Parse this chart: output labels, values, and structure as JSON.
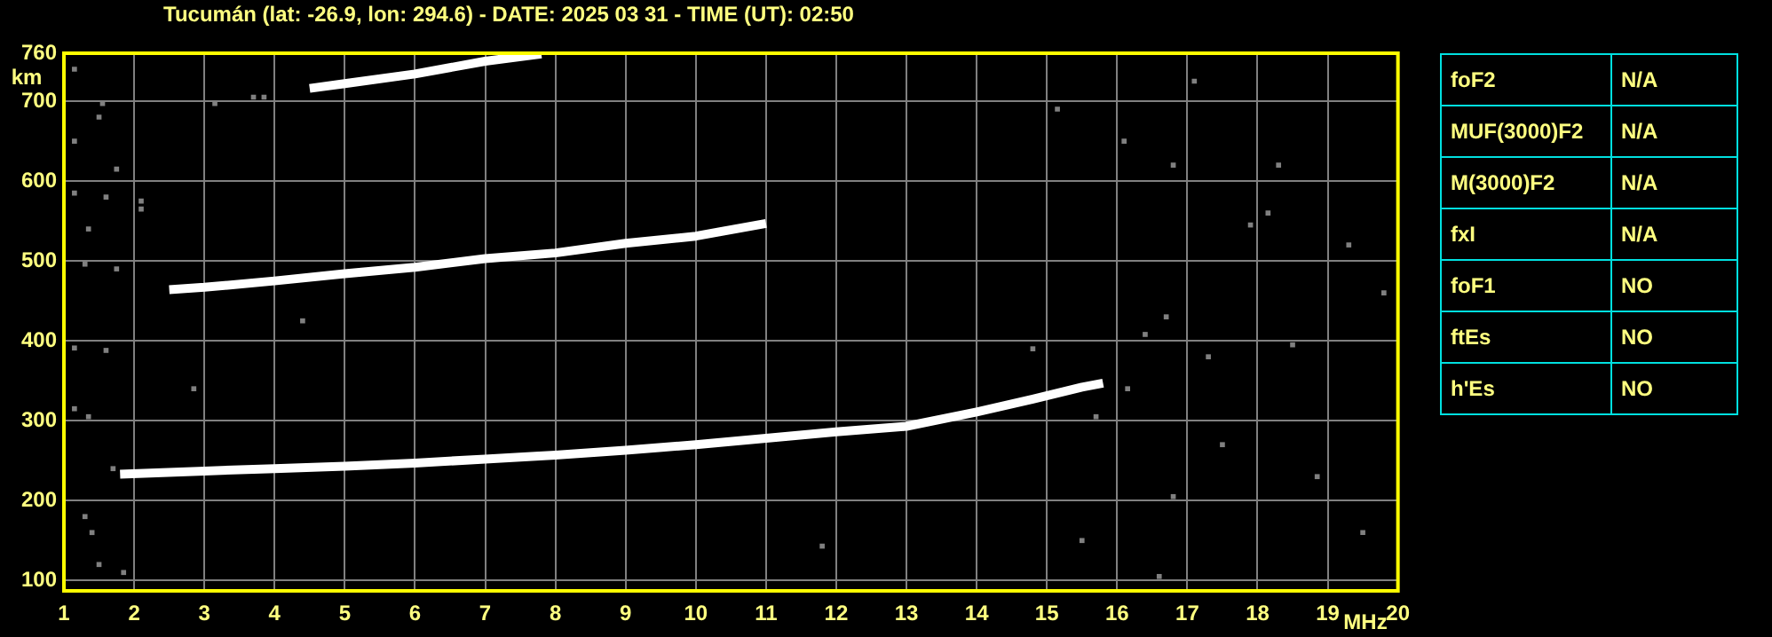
{
  "chart_data": [
    {
      "type": "line",
      "title": "Tucumán (lat: -26.9, lon: 294.6) - DATE: 2025 03 31 - TIME (UT): 02:50",
      "xlabel": "MHz",
      "ylabel": "km",
      "xlim": [
        1,
        20
      ],
      "ylim": [
        87,
        760
      ],
      "xticks": [
        1,
        2,
        3,
        4,
        5,
        6,
        7,
        8,
        9,
        10,
        11,
        12,
        13,
        14,
        15,
        16,
        17,
        18,
        19,
        20
      ],
      "yticks": [
        100,
        200,
        300,
        400,
        500,
        600,
        700,
        760
      ],
      "grid": true,
      "series": [
        {
          "color": "#ffffff",
          "x": [
            1.8,
            3,
            4,
            5,
            6,
            7,
            8,
            9,
            10,
            11,
            12,
            13,
            14,
            14.8,
            15.5,
            15.8
          ],
          "values": [
            233,
            237,
            240,
            243,
            247,
            252,
            257,
            263,
            270,
            278,
            286,
            293,
            311,
            327,
            342,
            347
          ]
        },
        {
          "color": "#ffffff",
          "x": [
            2.5,
            3,
            4,
            5,
            6,
            7,
            8,
            9,
            10,
            11
          ],
          "values": [
            464,
            467,
            475,
            484,
            492,
            503,
            510,
            522,
            531,
            547
          ]
        },
        {
          "color": "#ffffff",
          "x": [
            4.5,
            5,
            6,
            7,
            7.8
          ],
          "values": [
            716,
            722,
            734,
            750,
            759
          ]
        },
        {
          "type": "scatter",
          "marker": "square",
          "color": "#808080",
          "x": [
            1.15,
            1.55,
            1.5,
            1.15,
            1.75,
            1.15,
            1.6,
            1.35,
            2.1,
            2.1,
            3.15,
            3.7,
            3.85,
            1.3,
            1.75,
            1.15,
            1.6,
            2.85,
            1.15,
            1.35,
            1.7,
            1.3,
            1.4,
            1.5,
            1.85,
            11.8,
            4.4,
            17.1,
            16.1,
            18.15,
            16.7,
            17.3,
            18.5,
            15.15,
            16.8,
            17.9,
            16.4,
            19.8,
            15.7,
            17.5,
            16.8,
            18.85,
            16.6,
            19.5,
            15.5,
            16.15,
            14.8,
            19.3,
            18.3
          ],
          "values": [
            740,
            697,
            680,
            650,
            615,
            585,
            580,
            540,
            575,
            565,
            697,
            705,
            705,
            496,
            490,
            391,
            388,
            340,
            315,
            305,
            240,
            180,
            160,
            120,
            110,
            143,
            425,
            725,
            650,
            560,
            430,
            380,
            395,
            690,
            620,
            545,
            408,
            460,
            305,
            270,
            205,
            230,
            105,
            160,
            150,
            340,
            390,
            520,
            620
          ]
        }
      ]
    },
    {
      "type": "other",
      "annotations": [
        "foF2",
        "N/A",
        "MUF(3000)F2",
        "N/A",
        "M(3000)F2",
        "N/A",
        "fxI",
        "N/A",
        "foF1",
        "NO",
        "ftEs",
        "NO",
        "h'Es",
        "NO"
      ]
    }
  ]
}
